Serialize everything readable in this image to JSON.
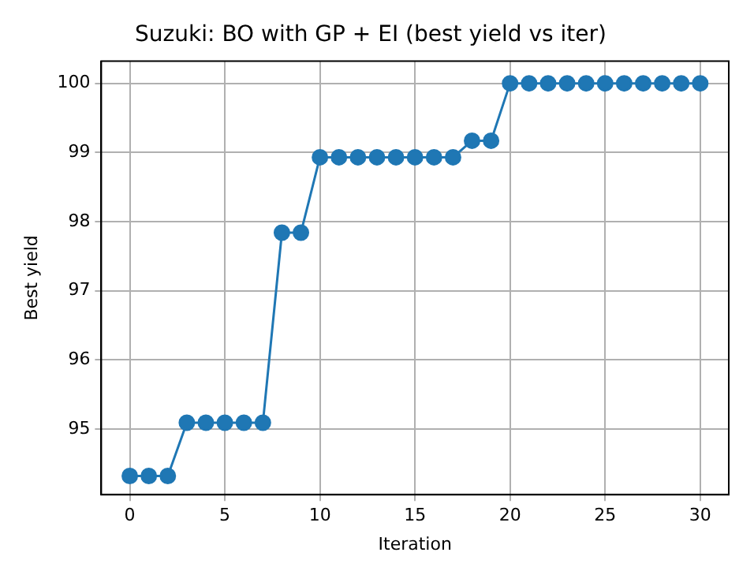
{
  "chart_data": {
    "type": "line",
    "title": "Suzuki: BO with GP + EI (best yield vs iter)",
    "xlabel": "Iteration",
    "ylabel": "Best yield",
    "x": [
      0,
      1,
      2,
      3,
      4,
      5,
      6,
      7,
      8,
      9,
      10,
      11,
      12,
      13,
      14,
      15,
      16,
      17,
      18,
      19,
      20,
      21,
      22,
      23,
      24,
      25,
      26,
      27,
      28,
      29,
      30
    ],
    "series": [
      {
        "color": "#1f77b4",
        "values": [
          94.32,
          94.32,
          94.32,
          95.09,
          95.09,
          95.09,
          95.09,
          95.09,
          97.84,
          97.84,
          98.93,
          98.93,
          98.93,
          98.93,
          98.93,
          98.93,
          98.93,
          98.93,
          99.17,
          99.17,
          100,
          100,
          100,
          100,
          100,
          100,
          100,
          100,
          100,
          100,
          100
        ]
      }
    ],
    "xlim": [
      -1.5,
      31.5
    ],
    "xticks": [
      0,
      5,
      10,
      15,
      20,
      25,
      30
    ],
    "ylim": [
      94.05,
      100.32
    ],
    "yticks": [
      95,
      96,
      97,
      98,
      99,
      100
    ],
    "grid": true,
    "legend": false,
    "marker": "circle",
    "line_style": "solid"
  }
}
